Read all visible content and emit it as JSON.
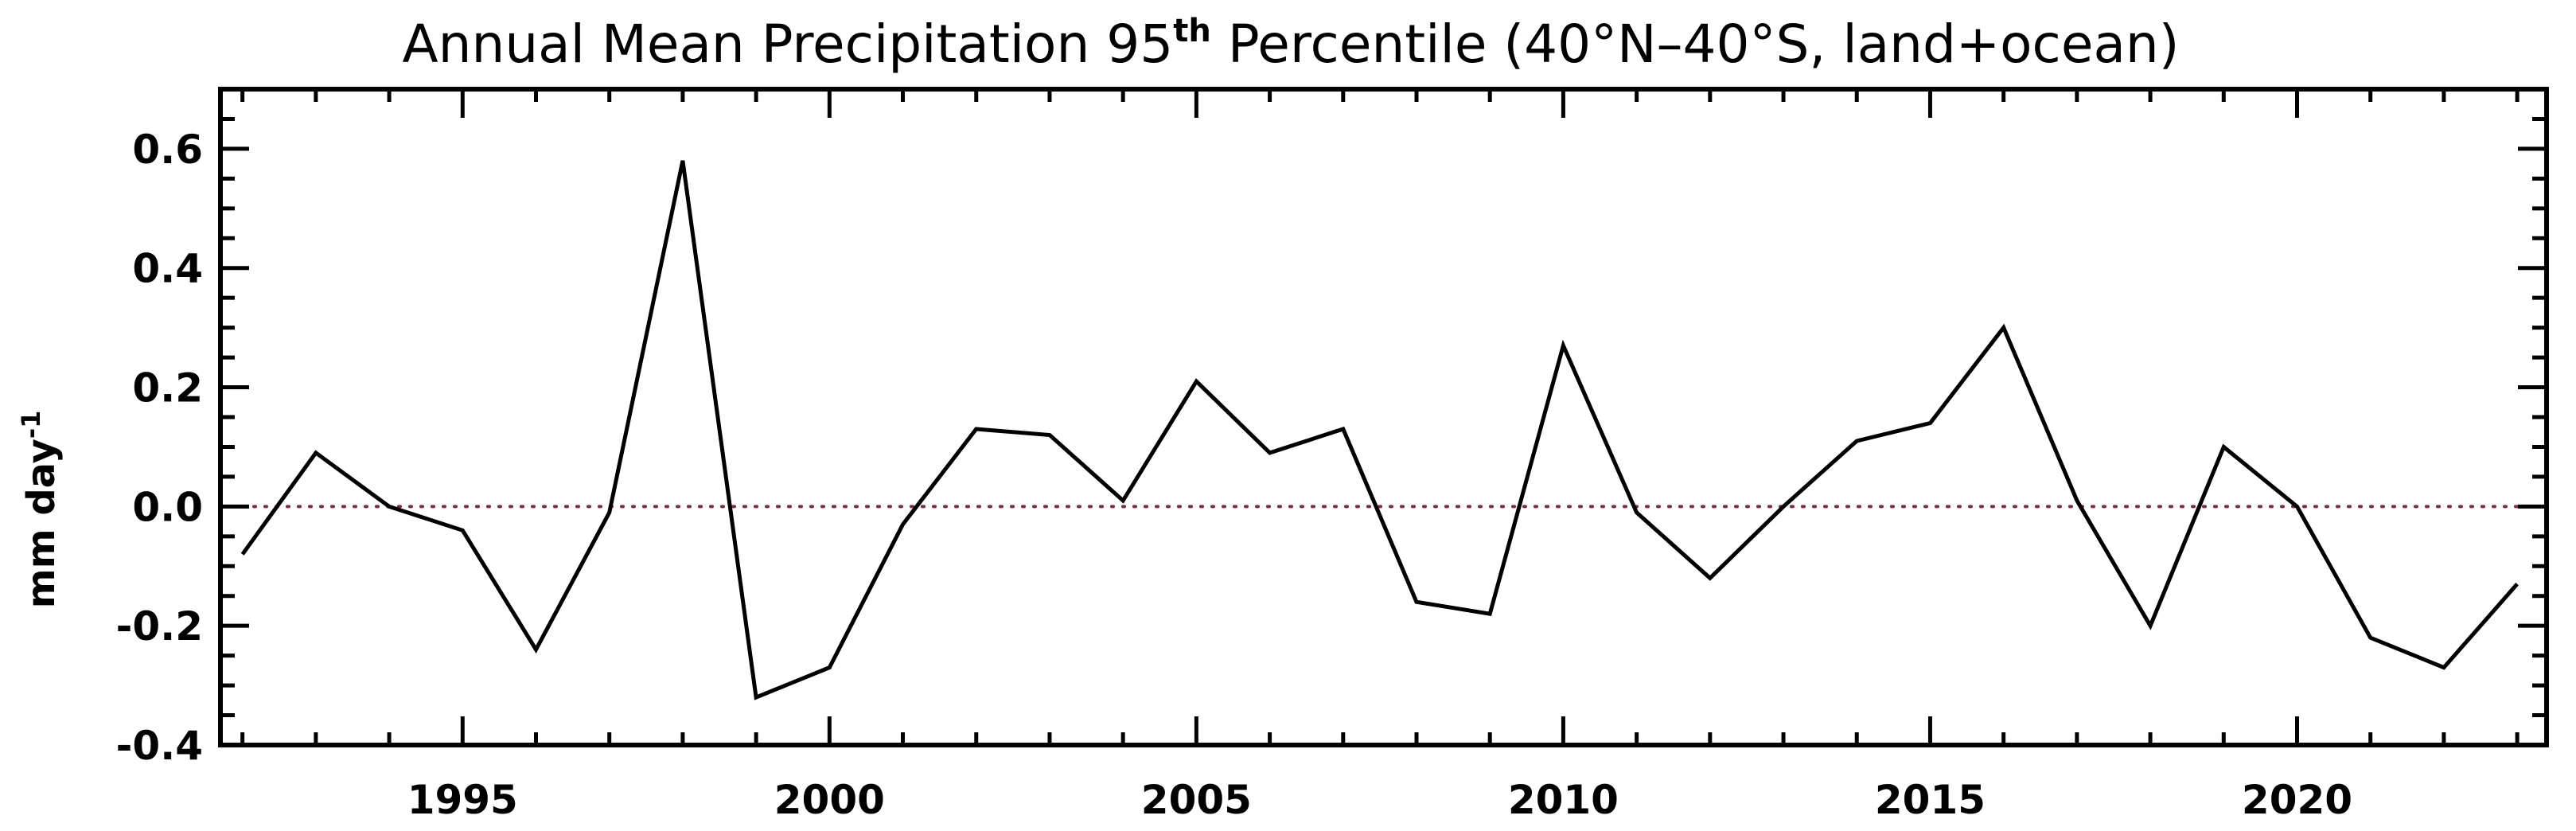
{
  "chart_data": {
    "type": "line",
    "title": {
      "main": "Annual Mean Precipitation 95",
      "superscript": "th",
      "rest": " Percentile (40°N–40°S, land+ocean)"
    },
    "xlabel": "",
    "ylabel": {
      "main": "mm day",
      "superscript": "-1"
    },
    "xlim": [
      1991.7,
      2023.4
    ],
    "ylim": [
      -0.4,
      0.7
    ],
    "x_major_ticks": [
      1995,
      2000,
      2005,
      2010,
      2015,
      2020
    ],
    "x_tick_labels": [
      "1995",
      "2000",
      "2005",
      "2010",
      "2015",
      "2020"
    ],
    "y_major_ticks": [
      -0.4,
      -0.2,
      0.0,
      0.2,
      0.4,
      0.6
    ],
    "y_tick_labels": [
      "-0.4",
      "-0.2",
      "0.0",
      "0.2",
      "0.4",
      "0.6"
    ],
    "reference_line": {
      "y": 0.0,
      "style": "dotted",
      "color": "#7a2a4a"
    },
    "grid": false,
    "line_color": "#000000",
    "x": [
      1992,
      1993,
      1994,
      1995,
      1996,
      1997,
      1998,
      1999,
      2000,
      2001,
      2002,
      2003,
      2004,
      2005,
      2006,
      2007,
      2008,
      2009,
      2010,
      2011,
      2012,
      2013,
      2014,
      2015,
      2016,
      2017,
      2018,
      2019,
      2020,
      2021,
      2022,
      2023
    ],
    "y": [
      -0.08,
      0.09,
      0.0,
      -0.04,
      -0.24,
      -0.01,
      0.58,
      -0.32,
      -0.27,
      -0.03,
      0.13,
      0.12,
      0.01,
      0.21,
      0.09,
      0.13,
      -0.16,
      -0.18,
      0.27,
      -0.01,
      -0.12,
      0.0,
      0.11,
      0.14,
      0.3,
      0.01,
      -0.2,
      0.1,
      0.0,
      -0.22,
      -0.27,
      -0.13
    ]
  }
}
